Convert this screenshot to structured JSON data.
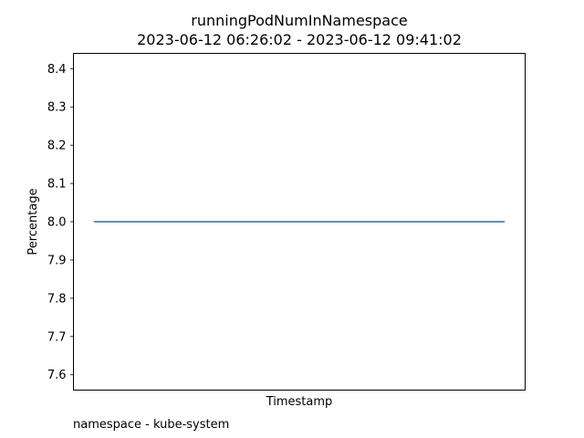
{
  "chart_data": {
    "type": "line",
    "title": "runningPodNumInNamespace",
    "subtitle": "2023-06-12 06:26:02 - 2023-06-12 09:41:02",
    "xlabel": "Timestamp",
    "ylabel": "Percentage",
    "x": [
      "2023-06-12 06:26:02",
      "2023-06-12 09:41:02"
    ],
    "series": [
      {
        "values": [
          8.0,
          8.0
        ],
        "color": "#1f77b4"
      }
    ],
    "ylim": [
      7.56,
      8.44
    ],
    "yticks": [
      "7.6",
      "7.7",
      "7.8",
      "7.9",
      "8.0",
      "8.1",
      "8.2",
      "8.3",
      "8.4"
    ],
    "xticks_visible": false,
    "grid": false,
    "legend": "none",
    "footnote": "namespace - kube-system"
  }
}
